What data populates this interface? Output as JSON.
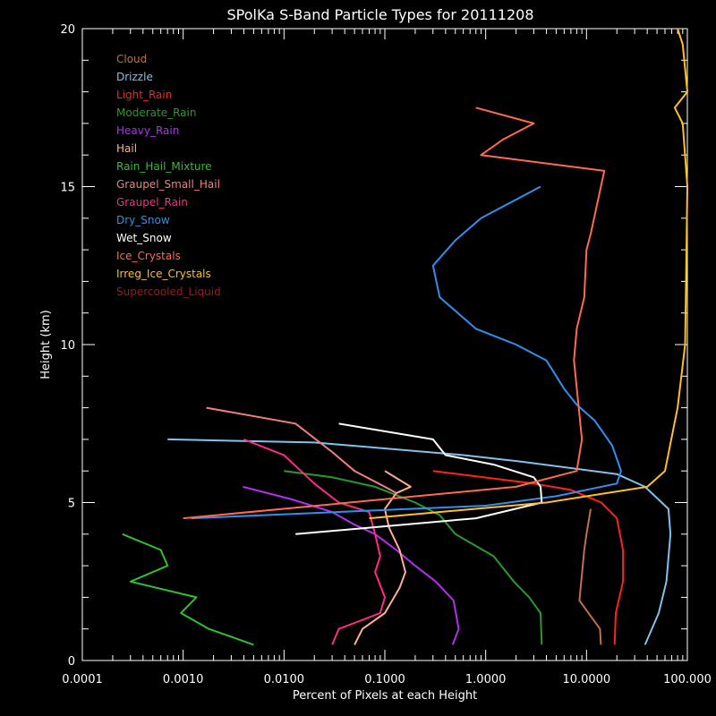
{
  "chart_data": {
    "type": "line",
    "title": "SPolKa S-Band Particle Types for 20111208",
    "xlabel": "Percent of Pixels at each Height",
    "ylabel": "Height (km)",
    "x_scale": "log",
    "xlim": [
      0.0001,
      100.0
    ],
    "ylim": [
      0,
      20
    ],
    "x_ticks": [
      0.0001,
      0.001,
      0.01,
      0.1,
      1,
      10,
      100
    ],
    "x_tick_labels": [
      "0.0001",
      "0.0010",
      "0.0100",
      "0.1000",
      "1.0000",
      "10.0000",
      "100.000"
    ],
    "y_ticks": [
      0,
      5,
      10,
      15,
      20
    ],
    "y_tick_labels": [
      "0",
      "5",
      "10",
      "15",
      "20"
    ],
    "grid": false,
    "legend_position": "top-left",
    "series": [
      {
        "name": "Cloud",
        "color": "#c0704a",
        "points": [
          [
            13.9,
            0.5
          ],
          [
            13.6,
            1
          ],
          [
            8.5,
            1.9
          ],
          [
            9.5,
            3.5
          ],
          [
            10,
            4
          ],
          [
            11,
            4.8
          ]
        ]
      },
      {
        "name": "Drizzle",
        "color": "#7fc3ec",
        "points": [
          [
            38,
            0.5
          ],
          [
            52,
            1.5
          ],
          [
            62,
            2.5
          ],
          [
            68,
            4
          ],
          [
            65,
            4.8
          ],
          [
            38,
            5.5
          ],
          [
            20,
            5.9
          ],
          [
            2.2,
            6.3
          ],
          [
            0.6,
            6.5
          ],
          [
            0.02,
            6.9
          ],
          [
            0.0007,
            7.0
          ]
        ]
      },
      {
        "name": "Light_Rain",
        "color": "#ff2020",
        "points": [
          [
            19,
            0.5
          ],
          [
            19.5,
            1.5
          ],
          [
            23,
            2.5
          ],
          [
            23,
            3.5
          ],
          [
            20,
            4.5
          ],
          [
            14,
            5
          ],
          [
            7,
            5.4
          ],
          [
            3,
            5.6
          ],
          [
            0.3,
            6.0
          ]
        ]
      },
      {
        "name": "Moderate_Rain",
        "color": "#2a9a2a",
        "points": [
          [
            3.6,
            0.5
          ],
          [
            3.5,
            1.5
          ],
          [
            2.7,
            2
          ],
          [
            1.9,
            2.5
          ],
          [
            1.2,
            3.3
          ],
          [
            0.5,
            4
          ],
          [
            0.35,
            4.6
          ],
          [
            0.2,
            5
          ],
          [
            0.08,
            5.5
          ],
          [
            0.03,
            5.8
          ],
          [
            0.01,
            6.0
          ]
        ]
      },
      {
        "name": "Heavy_Rain",
        "color": "#b030f0",
        "points": [
          [
            0.47,
            0.5
          ],
          [
            0.54,
            1
          ],
          [
            0.48,
            1.9
          ],
          [
            0.32,
            2.5
          ],
          [
            0.2,
            3
          ],
          [
            0.13,
            3.5
          ],
          [
            0.08,
            4
          ],
          [
            0.05,
            4.3
          ],
          [
            0.03,
            4.7
          ],
          [
            0.012,
            5.1
          ],
          [
            0.0039,
            5.5
          ]
        ]
      },
      {
        "name": "Hail",
        "color": "#ffb090",
        "points": [
          [
            0.05,
            0.5
          ],
          [
            0.06,
            1
          ],
          [
            0.1,
            1.5
          ],
          [
            0.14,
            2.3
          ],
          [
            0.16,
            2.8
          ],
          [
            0.14,
            3.5
          ],
          [
            0.11,
            4.2
          ],
          [
            0.1,
            4.8
          ],
          [
            0.13,
            5.3
          ],
          [
            0.18,
            5.5
          ],
          [
            0.1,
            6.0
          ]
        ]
      },
      {
        "name": "Rain_Hail_Mixture",
        "color": "#30c030",
        "points": [
          [
            0.005,
            0.5
          ],
          [
            0.0018,
            1
          ],
          [
            0.00095,
            1.5
          ],
          [
            0.00135,
            2
          ],
          [
            0.0003,
            2.5
          ],
          [
            0.0007,
            3
          ],
          [
            0.0006,
            3.5
          ],
          [
            0.00025,
            4.0
          ]
        ]
      },
      {
        "name": "Graupel_Small_Hail",
        "color": "#f08080",
        "points": [
          [
            0.13,
            5.3
          ],
          [
            0.1,
            5.5
          ],
          [
            0.05,
            6
          ],
          [
            0.03,
            6.6
          ],
          [
            0.013,
            7.5
          ],
          [
            0.0017,
            8.0
          ]
        ]
      },
      {
        "name": "Graupel_Rain",
        "color": "#ff2a8a",
        "points": [
          [
            0.03,
            0.5
          ],
          [
            0.035,
            1
          ],
          [
            0.09,
            1.5
          ],
          [
            0.1,
            2
          ],
          [
            0.08,
            2.8
          ],
          [
            0.09,
            3.3
          ],
          [
            0.08,
            4
          ],
          [
            0.07,
            4.7
          ],
          [
            0.035,
            5
          ],
          [
            0.02,
            5.6
          ],
          [
            0.01,
            6.5
          ],
          [
            0.004,
            7.0
          ]
        ]
      },
      {
        "name": "Dry_Snow",
        "color": "#3090f0",
        "points": [
          [
            0.0012,
            4.5
          ],
          [
            1,
            4.9
          ],
          [
            5,
            5.2
          ],
          [
            20,
            5.6
          ],
          [
            22,
            6
          ],
          [
            18,
            6.8
          ],
          [
            12,
            7.6
          ],
          [
            8,
            8.1
          ],
          [
            6,
            8.6
          ],
          [
            4,
            9.5
          ],
          [
            2,
            10
          ],
          [
            0.8,
            10.5
          ],
          [
            0.35,
            11.5
          ],
          [
            0.3,
            12.5
          ],
          [
            0.5,
            13.3
          ],
          [
            0.9,
            14
          ],
          [
            3.5,
            15.0
          ]
        ]
      },
      {
        "name": "Wet_Snow",
        "color": "#ffffff",
        "points": [
          [
            0.013,
            4.0
          ],
          [
            0.8,
            4.5
          ],
          [
            3.6,
            5.0
          ],
          [
            3.5,
            5.5
          ],
          [
            3,
            5.8
          ],
          [
            1.2,
            6.2
          ],
          [
            0.4,
            6.5
          ],
          [
            0.3,
            7
          ],
          [
            0.035,
            7.5
          ]
        ]
      },
      {
        "name": "Ice_Crystals",
        "color": "#ff6a50",
        "points": [
          [
            0.001,
            4.5
          ],
          [
            2,
            5.5
          ],
          [
            8,
            6
          ],
          [
            9,
            7
          ],
          [
            7.5,
            9.5
          ],
          [
            8,
            10.5
          ],
          [
            9.5,
            11.5
          ],
          [
            10,
            13
          ],
          [
            11,
            13.5
          ],
          [
            15,
            15.5
          ],
          [
            0.9,
            16
          ],
          [
            1.5,
            16.5
          ],
          [
            3,
            17
          ],
          [
            0.8,
            17.5
          ]
        ]
      },
      {
        "name": "Irreg_Ice_Crystals",
        "color": "#ffc020",
        "points": [
          [
            0.07,
            4.5
          ],
          [
            4,
            5
          ],
          [
            40,
            5.5
          ],
          [
            60,
            6
          ],
          [
            80,
            8
          ],
          [
            95,
            10
          ],
          [
            100,
            15
          ],
          [
            90,
            17
          ],
          [
            75,
            17.5
          ],
          [
            100,
            18
          ],
          [
            90,
            19.5
          ],
          [
            80,
            20
          ]
        ]
      },
      {
        "name": "Supercooled_Liquid",
        "color": "#a01820",
        "points": []
      }
    ]
  }
}
